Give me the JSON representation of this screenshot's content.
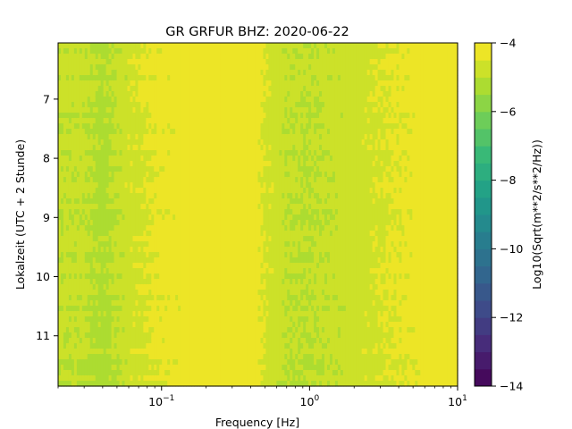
{
  "chart_data": {
    "type": "heatmap",
    "title": "GR GRFUR  BHZ: 2020-06-22",
    "xlabel": "Frequency [Hz]",
    "ylabel": "Lokalzeit (UTC + 2 Stunde)",
    "x_scale": "log",
    "xlim": [
      0.02,
      10
    ],
    "ylim": [
      11.85,
      6.05
    ],
    "y_ticks": [
      7,
      8,
      9,
      10,
      11
    ],
    "x_ticks": [
      {
        "base": "10",
        "exp": "−1",
        "value": 0.1
      },
      {
        "base": "10",
        "exp": "0",
        "value": 1
      },
      {
        "base": "10",
        "exp": "1",
        "value": 10
      }
    ],
    "colorbar": {
      "label": "Log10(Sqrt(m**2/s**2/Hz))",
      "range": [
        -14,
        -4
      ],
      "ticks": [
        "−4",
        "−6",
        "−8",
        "−10",
        "−12",
        "−14"
      ],
      "tick_values": [
        -4,
        -6,
        -8,
        -10,
        -12,
        -14
      ],
      "colormap": "viridis",
      "levels": 20
    },
    "frequency_profile": [
      {
        "f": 0.02,
        "value": -4.9
      },
      {
        "f": 0.03,
        "value": -4.9
      },
      {
        "f": 0.04,
        "value": -5.2
      },
      {
        "f": 0.06,
        "value": -4.7
      },
      {
        "f": 0.08,
        "value": -4.5
      },
      {
        "f": 0.1,
        "value": -4.35
      },
      {
        "f": 0.14,
        "value": -4.2
      },
      {
        "f": 0.2,
        "value": -4.05
      },
      {
        "f": 0.3,
        "value": -4.05
      },
      {
        "f": 0.4,
        "value": -4.15
      },
      {
        "f": 0.5,
        "value": -4.55
      },
      {
        "f": 0.7,
        "value": -4.95
      },
      {
        "f": 1,
        "value": -5.0
      },
      {
        "f": 2,
        "value": -4.75
      },
      {
        "f": 3,
        "value": -4.55
      },
      {
        "f": 5,
        "value": -4.35
      },
      {
        "f": 8,
        "value": -4.1
      },
      {
        "f": 10,
        "value": -4.25
      }
    ]
  }
}
